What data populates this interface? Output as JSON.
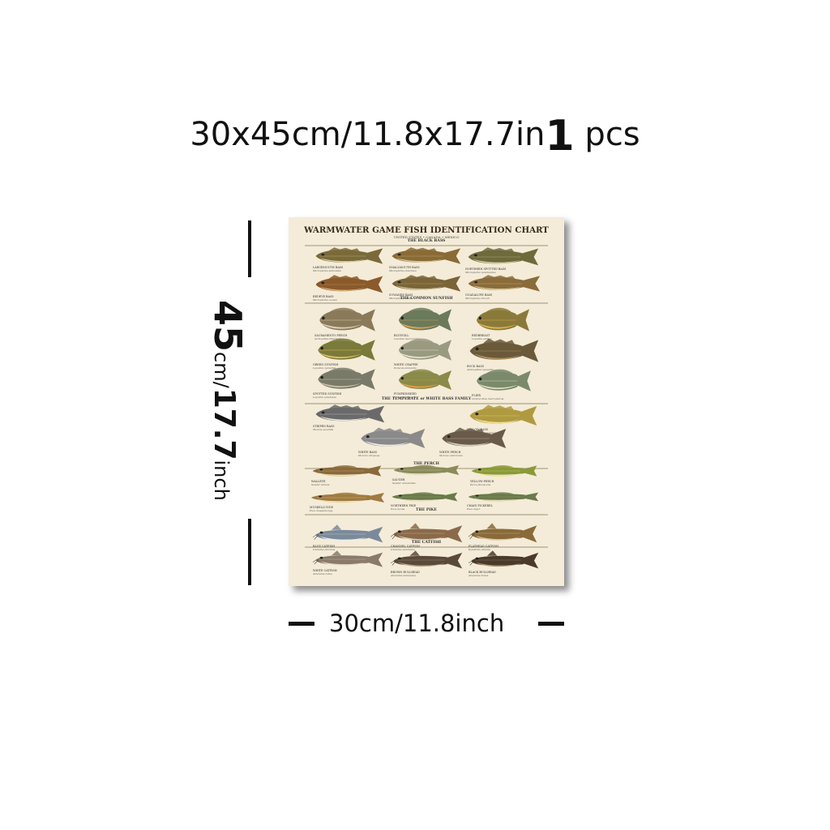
{
  "headline": {
    "size_text": "30x45cm/11.8x17.7in",
    "qty_number": "1",
    "qty_unit": "pcs"
  },
  "height_label": {
    "num": "45",
    "unit": "cm/",
    "num2": "17.7",
    "unit2": "inch"
  },
  "width_label": "30cm/11.8inch",
  "poster": {
    "title": "WARMWATER GAME FISH IDENTIFICATION CHART",
    "subtitle": "UNITED STATES • CANADA • MEXICO",
    "sections": [
      "THE BLACK BASS",
      "THE COMMON SUNFISH",
      "THE TEMPERATE or WHITE BASS FAMILY",
      "THE PERCH",
      "THE PIKE",
      "THE CATFISH"
    ],
    "fish": [
      {
        "name": "LARGEMOUTH BASS",
        "sci": "Micropterus salmoides",
        "body": "#7a6a3a",
        "belly": "#d8cfa0"
      },
      {
        "name": "SMALLMOUTH BASS",
        "sci": "Micropterus dolomieu",
        "body": "#8a6a35",
        "belly": "#d9c99a"
      },
      {
        "name": "NORTHERN SPOTTED BASS",
        "sci": "Micropterus punctulatus",
        "body": "#6e6a3c",
        "belly": "#d6cda2"
      },
      {
        "name": "REDEYE BASS",
        "sci": "Micropterus coosae",
        "body": "#8a5a2a",
        "belly": "#d9b07a"
      },
      {
        "name": "SUWANEE BASS",
        "sci": "Micropterus notius",
        "body": "#7a6438",
        "belly": "#cfc29a"
      },
      {
        "name": "GUADALUPE BASS",
        "sci": "Micropterus treculi",
        "body": "#8a6c3a",
        "belly": "#d8c79a"
      },
      {
        "name": "SACRAMENTO PERCH",
        "sci": "Archoplites interruptus",
        "body": "#8a7a5a",
        "belly": "#d9d0b8"
      },
      {
        "name": "BLUEGILL",
        "sci": "Lepomis macrochirus",
        "body": "#6a7a5a",
        "belly": "#e0a050"
      },
      {
        "name": "REDBREAST",
        "sci": "Lepomis auritus",
        "body": "#8a7a3a",
        "belly": "#e0b050"
      },
      {
        "name": "GREEN SUNFISH",
        "sci": "Lepomis cyanellus",
        "body": "#7a7a3a",
        "belly": "#e0c060"
      },
      {
        "name": "WHITE CRAPPIE",
        "sci": "Pomoxis annularis",
        "body": "#9a9a80",
        "belly": "#e5e2d0"
      },
      {
        "name": "ROCK BASS",
        "sci": "Ambloplites rupestris",
        "body": "#6a5a3a",
        "belly": "#b09060"
      },
      {
        "name": "SPOTTED SUNFISH",
        "sci": "Lepomis punctatus",
        "body": "#7a7a6a",
        "belly": "#c8c0a0"
      },
      {
        "name": "PUMPKINSEED",
        "sci": "Lepomis gibbosus",
        "body": "#8a8a4a",
        "belly": "#e8a040"
      },
      {
        "name": "FLIER",
        "sci": "Centrarchus macropterus",
        "body": "#7a8a6a",
        "belly": "#dcdcc0"
      },
      {
        "name": "STRIPED BASS",
        "sci": "Morone saxatilis",
        "body": "#6a6a6a",
        "belly": "#e8e8e0"
      },
      {
        "name": "YELLOW BASS",
        "sci": "Morone mississippiensis",
        "body": "#b09a40",
        "belly": "#f0e090"
      },
      {
        "name": "WHITE BASS",
        "sci": "Morone chrysops",
        "body": "#8a8a8a",
        "belly": "#ececec"
      },
      {
        "name": "WHITE PERCH",
        "sci": "Morone americana",
        "body": "#6a5a4a",
        "belly": "#d8d0c0"
      },
      {
        "name": "WALLEYE",
        "sci": "Sander vitreus",
        "body": "#8a6a3a",
        "belly": "#e0d0a0"
      },
      {
        "name": "SAUGER",
        "sci": "Sander canadensis",
        "body": "#8a8a5a",
        "belly": "#e0dcc0"
      },
      {
        "name": "YELLOW PERCH",
        "sci": "Perca flavescens",
        "body": "#8a9a3a",
        "belly": "#f0e080"
      },
      {
        "name": "MUSKELLUNGE",
        "sci": "Esox masquinongy",
        "body": "#a07a40",
        "belly": "#e8d8a8"
      },
      {
        "name": "NORTHERN PIKE",
        "sci": "Esox lucius",
        "body": "#6a7a4a",
        "belly": "#e0dcb0"
      },
      {
        "name": "CHAIN PICKEREL",
        "sci": "Esox niger",
        "body": "#6a7a4a",
        "belly": "#d8d4a8"
      },
      {
        "name": "BLUE CATFISH",
        "sci": "Ictalurus furcatus",
        "body": "#7a8a9a",
        "belly": "#e8ecf0"
      },
      {
        "name": "CHANNEL CATFISH",
        "sci": "Ictalurus punctatus",
        "body": "#8a6a4a",
        "belly": "#e0d0b8"
      },
      {
        "name": "FLATHEAD CATFISH",
        "sci": "Pylodictis olivaris",
        "body": "#8a6a3a",
        "belly": "#dcc8a0"
      },
      {
        "name": "WHITE CATFISH",
        "sci": "Ameiurus catus",
        "body": "#8a7a6a",
        "belly": "#e0d8cc"
      },
      {
        "name": "BROWN BULLHEAD",
        "sci": "Ameiurus nebulosus",
        "body": "#5a4a3a",
        "belly": "#c0a888"
      },
      {
        "name": "BLACK BULLHEAD",
        "sci": "Ameiurus melas",
        "body": "#4a3a2a",
        "belly": "#b09878"
      }
    ]
  }
}
